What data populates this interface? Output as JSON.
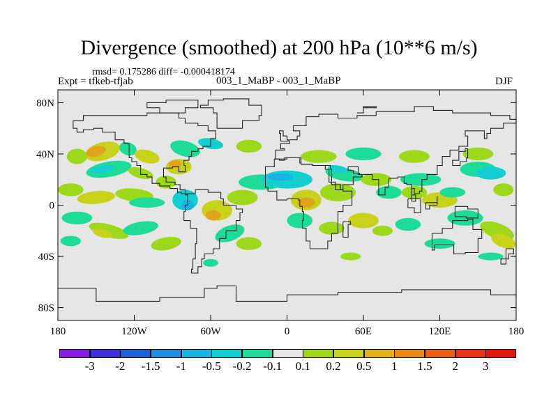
{
  "title": "Divergence (smoothed) at 200 hPa (10**6 m/s)",
  "stats_line": "rmsd= 0.175286 diff= -0.000418174",
  "expt_label": "Expt = tfkeb-tfjab",
  "comparison": "003_1_MaBP - 003_1_MaBP",
  "season": "DJF",
  "lat_ticks": [
    "80N",
    "40N",
    "0",
    "40S",
    "80S"
  ],
  "lon_ticks": [
    "180",
    "120W",
    "60W",
    "0",
    "60E",
    "120E",
    "180"
  ],
  "colorbar": {
    "labels": [
      "-3",
      "-2",
      "-1.5",
      "-1",
      "-0.5",
      "-0.2",
      "-0.1",
      "0.1",
      "0.2",
      "0.5",
      "1",
      "1.5",
      "2",
      "3"
    ],
    "colors": [
      "#8a1ee0",
      "#3f2fd6",
      "#1f5fd8",
      "#1f8ee0",
      "#1ab4e0",
      "#14cfd0",
      "#1ddc9a",
      "#e6e6e6",
      "#9ed81a",
      "#c8d21a",
      "#e0b21c",
      "#e88a1a",
      "#ea5e18",
      "#e8321a",
      "#e01a10"
    ]
  },
  "map_colors": {
    "background": "#e6e6e6",
    "coast": "#222222",
    "pos_weak": "#9ed81a",
    "pos_mid": "#c8d21a",
    "pos_strong": "#e0a41c",
    "neg_weak": "#1ddc9a",
    "neg_mid": "#14cfd0",
    "neg_strong": "#1ab4e0"
  }
}
